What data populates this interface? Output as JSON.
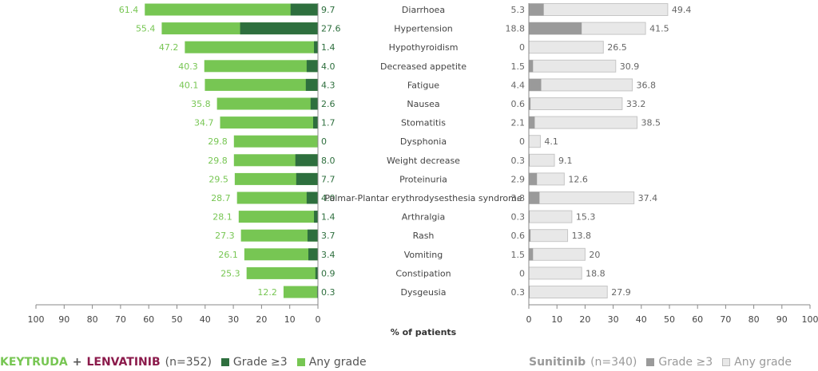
{
  "chart_data": {
    "type": "bar",
    "orientation": "horizontal",
    "categories": [
      "Diarrhoea",
      "Hypertension",
      "Hypothyroidism",
      "Decreased appetite",
      "Fatigue",
      "Nausea",
      "Stomatitis",
      "Dysphonia",
      "Weight decrease",
      "Proteinuria",
      "Palmar-Plantar erythrodysesthesia syndrome",
      "Arthralgia",
      "Rash",
      "Vomiting",
      "Constipation",
      "Dysgeusia"
    ],
    "panels": [
      {
        "name": "KEYTRUDA + LENVATINIB",
        "series": [
          {
            "name": "Any grade",
            "values": [
              61.4,
              55.4,
              47.2,
              40.3,
              40.1,
              35.8,
              34.7,
              29.8,
              29.8,
              29.5,
              28.7,
              28.1,
              27.3,
              26.1,
              25.3,
              12.2
            ]
          },
          {
            "name": "Grade ≥3",
            "values": [
              9.7,
              27.6,
              1.4,
              4.0,
              4.3,
              2.6,
              1.7,
              0,
              8.0,
              7.7,
              4.0,
              1.4,
              3.7,
              3.4,
              0.9,
              0.3
            ]
          }
        ],
        "xlim": [
          100,
          0
        ]
      },
      {
        "name": "Sunitinib",
        "series": [
          {
            "name": "Any grade",
            "values": [
              49.4,
              41.5,
              26.5,
              30.9,
              36.8,
              33.2,
              38.5,
              4.1,
              9.1,
              12.6,
              37.4,
              15.3,
              13.8,
              20,
              18.8,
              27.9
            ]
          },
          {
            "name": "Grade ≥3",
            "values": [
              5.3,
              18.8,
              0,
              1.5,
              4.4,
              0.6,
              2.1,
              0,
              0.3,
              2.9,
              3.8,
              0.3,
              0.6,
              1.5,
              0,
              0.3
            ]
          }
        ],
        "xlim": [
          0,
          100
        ]
      }
    ],
    "left_value_labels": [
      "61.4",
      "55.4",
      "47.2",
      "40.3",
      "40.1",
      "35.8",
      "34.7",
      "29.8",
      "29.8",
      "29.5",
      "28.7",
      "28.1",
      "27.3",
      "26.1",
      "25.3",
      "12.2"
    ],
    "left_grade_labels": [
      "9.7",
      "27.6",
      "1.4",
      "4.0",
      "4.3",
      "2.6",
      "1.7",
      "0",
      "8.0",
      "7.7",
      "4.0",
      "1.4",
      "3.7",
      "3.4",
      "0.9",
      "0.3"
    ],
    "right_grade_labels": [
      "5.3",
      "18.8",
      "0",
      "1.5",
      "4.4",
      "0.6",
      "2.1",
      "0",
      "0.3",
      "2.9",
      "3.8",
      "0.3",
      "0.6",
      "1.5",
      "0",
      "0.3"
    ],
    "right_value_labels": [
      "49.4",
      "41.5",
      "26.5",
      "30.9",
      "36.8",
      "33.2",
      "38.5",
      "4.1",
      "9.1",
      "12.6",
      "37.4",
      "15.3",
      "13.8",
      "20",
      "18.8",
      "27.9"
    ],
    "ticks": [
      "100",
      "90",
      "80",
      "70",
      "60",
      "50",
      "40",
      "30",
      "20",
      "10",
      "0"
    ],
    "ticks_right": [
      "0",
      "10",
      "20",
      "30",
      "40",
      "50",
      "60",
      "70",
      "80",
      "90",
      "100"
    ],
    "xlabel": "% of patients",
    "legend_placement": "bottom",
    "colors": {
      "left_any": "#77c653",
      "left_grade": "#2e6f3e",
      "right_any": "#e8e8e8",
      "right_grade": "#9a9a9a",
      "keytruda": "#77c653",
      "lenvatinib": "#8b1a4b"
    }
  },
  "legend": {
    "keytruda": "KEYTRUDA",
    "plus": "+",
    "lenvatinib": "LENVATINIB",
    "left_n": "(n=352)",
    "grade": "Grade ≥3",
    "any": "Any grade",
    "sunitinib": "Sunitinib",
    "right_n": "(n=340)"
  }
}
